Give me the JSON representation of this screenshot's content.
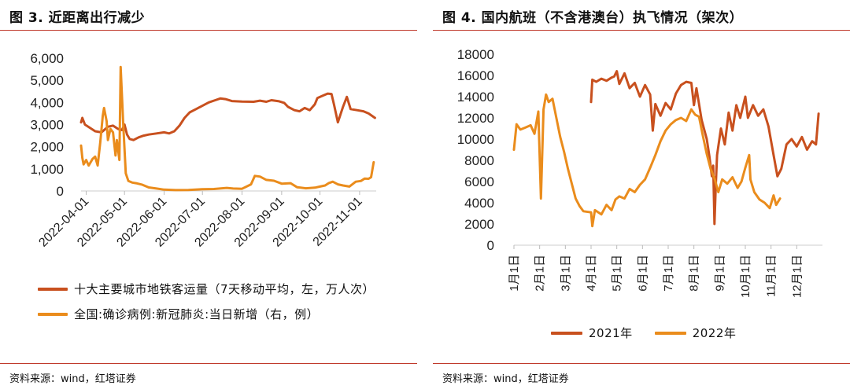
{
  "left": {
    "title": "图 3. 近距离出行减少",
    "source": "资料来源：wind，红塔证券",
    "colors": {
      "metro": "#c8501e",
      "covid": "#ea8c1c"
    },
    "chart_data": {
      "type": "line",
      "x_labels": [
        "2022-04-01",
        "2022-05-01",
        "2022-06-01",
        "2022-07-01",
        "2022-08-01",
        "2022-09-01",
        "2022-10-01",
        "2022-11-01"
      ],
      "ylim": [
        0,
        6000
      ],
      "yticks": [
        "6,000",
        "5,000",
        "4,000",
        "3,000",
        "2,000",
        "1,000",
        "0"
      ],
      "series": [
        {
          "name": "十大主要城市地铁客运量（7天移动平均，左，万人次）",
          "axis": "left",
          "values": [
            [
              "2022-03-28",
              3100
            ],
            [
              "2022-03-29",
              3300
            ],
            [
              "2022-03-31",
              3000
            ],
            [
              "2022-04-04",
              2850
            ],
            [
              "2022-04-08",
              2700
            ],
            [
              "2022-04-13",
              2650
            ],
            [
              "2022-04-18",
              2900
            ],
            [
              "2022-04-22",
              2950
            ],
            [
              "2022-04-26",
              2800
            ],
            [
              "2022-04-29",
              2750
            ],
            [
              "2022-05-01",
              3000
            ],
            [
              "2022-05-03",
              2550
            ],
            [
              "2022-05-05",
              2350
            ],
            [
              "2022-05-08",
              2300
            ],
            [
              "2022-05-12",
              2420
            ],
            [
              "2022-05-16",
              2500
            ],
            [
              "2022-05-20",
              2550
            ],
            [
              "2022-05-26",
              2600
            ],
            [
              "2022-06-01",
              2650
            ],
            [
              "2022-06-05",
              2600
            ],
            [
              "2022-06-09",
              2700
            ],
            [
              "2022-06-13",
              2950
            ],
            [
              "2022-06-17",
              3300
            ],
            [
              "2022-06-21",
              3550
            ],
            [
              "2022-06-26",
              3700
            ],
            [
              "2022-07-01",
              3850
            ],
            [
              "2022-07-06",
              4000
            ],
            [
              "2022-07-11",
              4100
            ],
            [
              "2022-07-15",
              4180
            ],
            [
              "2022-07-19",
              4150
            ],
            [
              "2022-07-24",
              4060
            ],
            [
              "2022-08-01",
              4040
            ],
            [
              "2022-08-10",
              4030
            ],
            [
              "2022-08-15",
              4080
            ],
            [
              "2022-08-20",
              4030
            ],
            [
              "2022-08-24",
              4100
            ],
            [
              "2022-08-30",
              4050
            ],
            [
              "2022-09-03",
              3980
            ],
            [
              "2022-09-06",
              3800
            ],
            [
              "2022-09-11",
              3650
            ],
            [
              "2022-09-15",
              3600
            ],
            [
              "2022-09-19",
              3750
            ],
            [
              "2022-09-23",
              3650
            ],
            [
              "2022-09-27",
              3920
            ],
            [
              "2022-09-29",
              4200
            ],
            [
              "2022-10-03",
              4300
            ],
            [
              "2022-10-07",
              4400
            ],
            [
              "2022-10-10",
              4380
            ],
            [
              "2022-10-12",
              3900
            ],
            [
              "2022-10-15",
              3100
            ],
            [
              "2022-10-19",
              3800
            ],
            [
              "2022-10-22",
              4250
            ],
            [
              "2022-10-25",
              3700
            ],
            [
              "2022-10-30",
              3650
            ],
            [
              "2022-11-04",
              3600
            ],
            [
              "2022-11-08",
              3500
            ],
            [
              "2022-11-13",
              3300
            ]
          ]
        },
        {
          "name": "全国:确诊病例:新冠肺炎:当日新增（右，例）",
          "axis": "left",
          "values": [
            [
              "2022-03-28",
              2050
            ],
            [
              "2022-03-29",
              1500
            ],
            [
              "2022-03-30",
              1200
            ],
            [
              "2022-04-01",
              1400
            ],
            [
              "2022-04-03",
              1150
            ],
            [
              "2022-04-06",
              1450
            ],
            [
              "2022-04-08",
              1550
            ],
            [
              "2022-04-10",
              1150
            ],
            [
              "2022-04-12",
              2200
            ],
            [
              "2022-04-14",
              3400
            ],
            [
              "2022-04-15",
              3750
            ],
            [
              "2022-04-17",
              3150
            ],
            [
              "2022-04-18",
              2300
            ],
            [
              "2022-04-20",
              2800
            ],
            [
              "2022-04-22",
              2650
            ],
            [
              "2022-04-24",
              1600
            ],
            [
              "2022-04-25",
              2300
            ],
            [
              "2022-04-27",
              1400
            ],
            [
              "2022-04-28",
              5600
            ],
            [
              "2022-04-30",
              3000
            ],
            [
              "2022-05-02",
              800
            ],
            [
              "2022-05-04",
              450
            ],
            [
              "2022-05-07",
              380
            ],
            [
              "2022-05-10",
              350
            ],
            [
              "2022-05-15",
              280
            ],
            [
              "2022-05-20",
              160
            ],
            [
              "2022-05-26",
              110
            ],
            [
              "2022-06-01",
              60
            ],
            [
              "2022-06-10",
              40
            ],
            [
              "2022-06-20",
              45
            ],
            [
              "2022-07-01",
              80
            ],
            [
              "2022-07-10",
              90
            ],
            [
              "2022-07-20",
              140
            ],
            [
              "2022-07-25",
              110
            ],
            [
              "2022-08-01",
              100
            ],
            [
              "2022-08-08",
              300
            ],
            [
              "2022-08-11",
              680
            ],
            [
              "2022-08-15",
              650
            ],
            [
              "2022-08-20",
              500
            ],
            [
              "2022-08-26",
              460
            ],
            [
              "2022-09-01",
              330
            ],
            [
              "2022-09-08",
              350
            ],
            [
              "2022-09-13",
              170
            ],
            [
              "2022-09-20",
              120
            ],
            [
              "2022-09-27",
              150
            ],
            [
              "2022-10-01",
              200
            ],
            [
              "2022-10-05",
              250
            ],
            [
              "2022-10-08",
              360
            ],
            [
              "2022-10-11",
              420
            ],
            [
              "2022-10-15",
              300
            ],
            [
              "2022-10-19",
              250
            ],
            [
              "2022-10-24",
              200
            ],
            [
              "2022-10-29",
              420
            ],
            [
              "2022-11-02",
              450
            ],
            [
              "2022-11-05",
              560
            ],
            [
              "2022-11-08",
              550
            ],
            [
              "2022-11-10",
              620
            ],
            [
              "2022-11-12",
              1300
            ]
          ]
        }
      ]
    }
  },
  "right": {
    "title": "图 4. 国内航班（不含港澳台）执飞情况（架次）",
    "source": "资料来源：wind，红塔证券",
    "colors": {
      "y2021": "#c8501e",
      "y2022": "#ea8c1c"
    },
    "chart_data": {
      "type": "line",
      "x_labels": [
        "1月1日",
        "2月1日",
        "3月1日",
        "4月1日",
        "5月1日",
        "6月1日",
        "7月1日",
        "8月1日",
        "9月1日",
        "10月1日",
        "11月1日",
        "12月1日"
      ],
      "ylim": [
        0,
        18000
      ],
      "yticks": [
        "18000",
        "16000",
        "14000",
        "12000",
        "10000",
        "8000",
        "6000",
        "4000",
        "2000",
        "0"
      ],
      "series": [
        {
          "name": "2021年",
          "values": [
            [
              3.0,
              13500
            ],
            [
              3.05,
              15600
            ],
            [
              3.2,
              15400
            ],
            [
              3.4,
              15700
            ],
            [
              3.6,
              15500
            ],
            [
              3.8,
              15800
            ],
            [
              3.9,
              15900
            ],
            [
              4.0,
              16400
            ],
            [
              4.1,
              15200
            ],
            [
              4.3,
              16200
            ],
            [
              4.5,
              14800
            ],
            [
              4.7,
              15300
            ],
            [
              4.9,
              14000
            ],
            [
              5.1,
              15100
            ],
            [
              5.3,
              14200
            ],
            [
              5.4,
              10800
            ],
            [
              5.5,
              13300
            ],
            [
              5.7,
              12200
            ],
            [
              5.9,
              13400
            ],
            [
              6.1,
              12800
            ],
            [
              6.3,
              14300
            ],
            [
              6.5,
              15100
            ],
            [
              6.7,
              15400
            ],
            [
              6.9,
              15300
            ],
            [
              7.0,
              13200
            ],
            [
              7.1,
              14800
            ],
            [
              7.3,
              11800
            ],
            [
              7.5,
              10000
            ],
            [
              7.6,
              8400
            ],
            [
              7.7,
              6500
            ],
            [
              7.75,
              7500
            ],
            [
              7.8,
              2000
            ],
            [
              7.85,
              5500
            ],
            [
              7.9,
              8500
            ],
            [
              8.05,
              11000
            ],
            [
              8.2,
              9500
            ],
            [
              8.35,
              12500
            ],
            [
              8.5,
              10800
            ],
            [
              8.65,
              13200
            ],
            [
              8.8,
              12000
            ],
            [
              9.0,
              14000
            ],
            [
              9.1,
              12000
            ],
            [
              9.3,
              13200
            ],
            [
              9.5,
              12200
            ],
            [
              9.7,
              12800
            ],
            [
              9.9,
              11200
            ],
            [
              10.1,
              8500
            ],
            [
              10.25,
              6500
            ],
            [
              10.4,
              7200
            ],
            [
              10.6,
              9500
            ],
            [
              10.8,
              10000
            ],
            [
              11.0,
              9300
            ],
            [
              11.2,
              10200
            ],
            [
              11.4,
              9000
            ],
            [
              11.6,
              9800
            ],
            [
              11.75,
              9500
            ],
            [
              11.85,
              12400
            ]
          ]
        },
        {
          "name": "2022年",
          "values": [
            [
              0.0,
              9000
            ],
            [
              0.1,
              11400
            ],
            [
              0.25,
              10900
            ],
            [
              0.45,
              11100
            ],
            [
              0.65,
              11300
            ],
            [
              0.8,
              10500
            ],
            [
              0.95,
              12600
            ],
            [
              1.05,
              4400
            ],
            [
              1.15,
              12800
            ],
            [
              1.25,
              14200
            ],
            [
              1.35,
              13500
            ],
            [
              1.5,
              13800
            ],
            [
              1.65,
              12000
            ],
            [
              1.8,
              10200
            ],
            [
              1.95,
              8800
            ],
            [
              2.1,
              7200
            ],
            [
              2.25,
              5800
            ],
            [
              2.4,
              4400
            ],
            [
              2.55,
              3700
            ],
            [
              2.7,
              3200
            ],
            [
              3.0,
              3100
            ],
            [
              3.05,
              1800
            ],
            [
              3.15,
              3300
            ],
            [
              3.4,
              2900
            ],
            [
              3.6,
              3800
            ],
            [
              3.8,
              3300
            ],
            [
              3.95,
              4300
            ],
            [
              4.1,
              4600
            ],
            [
              4.3,
              4400
            ],
            [
              4.5,
              5300
            ],
            [
              4.7,
              5000
            ],
            [
              4.9,
              5700
            ],
            [
              5.1,
              6200
            ],
            [
              5.3,
              7300
            ],
            [
              5.5,
              8500
            ],
            [
              5.7,
              9800
            ],
            [
              5.9,
              10800
            ],
            [
              6.1,
              11400
            ],
            [
              6.3,
              11800
            ],
            [
              6.5,
              12000
            ],
            [
              6.7,
              11700
            ],
            [
              6.9,
              12800
            ],
            [
              7.05,
              12300
            ],
            [
              7.2,
              12100
            ],
            [
              7.35,
              10300
            ],
            [
              7.5,
              8600
            ],
            [
              7.65,
              7200
            ],
            [
              7.8,
              6300
            ],
            [
              7.95,
              5000
            ],
            [
              8.1,
              6200
            ],
            [
              8.3,
              5800
            ],
            [
              8.5,
              6400
            ],
            [
              8.7,
              5400
            ],
            [
              8.85,
              6000
            ],
            [
              9.0,
              7300
            ],
            [
              9.15,
              8500
            ],
            [
              9.2,
              6200
            ],
            [
              9.35,
              5000
            ],
            [
              9.55,
              4300
            ],
            [
              9.75,
              4000
            ],
            [
              9.95,
              3500
            ],
            [
              10.1,
              4700
            ],
            [
              10.2,
              3800
            ],
            [
              10.35,
              4400
            ]
          ]
        }
      ]
    }
  }
}
